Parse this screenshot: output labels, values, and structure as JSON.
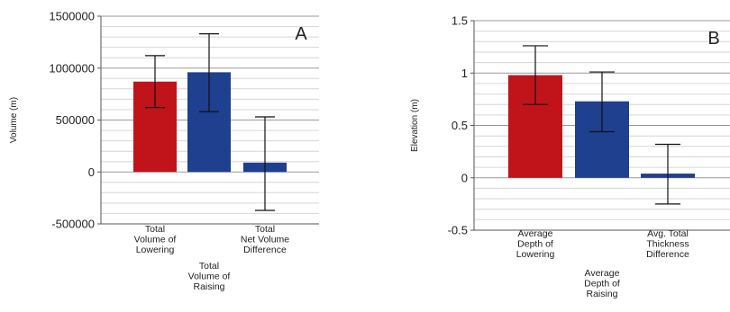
{
  "chart_data": [
    {
      "type": "bar",
      "panel_label": "A",
      "title": "",
      "xlabel": "",
      "ylabel": "Volume (m)",
      "ylim": [
        -500000,
        1500000
      ],
      "yticks": [
        -500000,
        0,
        500000,
        1000000,
        1500000
      ],
      "ytick_labels": [
        "-500000",
        "0",
        "500000",
        "1000000",
        "1500000"
      ],
      "grid": true,
      "legend": "none",
      "categories": [
        [
          "Total",
          "Volume of",
          "Lowering"
        ],
        [
          "Total",
          "Volume of",
          "Raising"
        ],
        [
          "Total",
          "Net Volume",
          "Difference"
        ]
      ],
      "values": [
        870000,
        960000,
        90000
      ],
      "error_low": [
        620000,
        580000,
        -370000
      ],
      "error_high": [
        1120000,
        1330000,
        530000
      ],
      "colors": [
        "#c0141a",
        "#1f3f8f",
        "#1f3f8f"
      ]
    },
    {
      "type": "bar",
      "panel_label": "B",
      "title": "",
      "xlabel": "",
      "ylabel": "Elevation (m)",
      "ylim": [
        -0.5,
        1.5
      ],
      "yticks": [
        -0.5,
        0,
        0.5,
        1,
        1.5
      ],
      "ytick_labels": [
        "-0.5",
        "0",
        "0.5",
        "1",
        "1.5"
      ],
      "grid": true,
      "legend": "none",
      "categories": [
        [
          "Average",
          "Depth of",
          "Lowering"
        ],
        [
          "Average",
          "Depth of",
          "Raising"
        ],
        [
          "Avg. Total",
          "Thickness",
          "Difference"
        ]
      ],
      "values": [
        0.98,
        0.73,
        0.04
      ],
      "error_low": [
        0.7,
        0.44,
        -0.25
      ],
      "error_high": [
        1.26,
        1.01,
        0.32
      ],
      "colors": [
        "#c0141a",
        "#1f3f8f",
        "#1f3f8f"
      ]
    }
  ]
}
